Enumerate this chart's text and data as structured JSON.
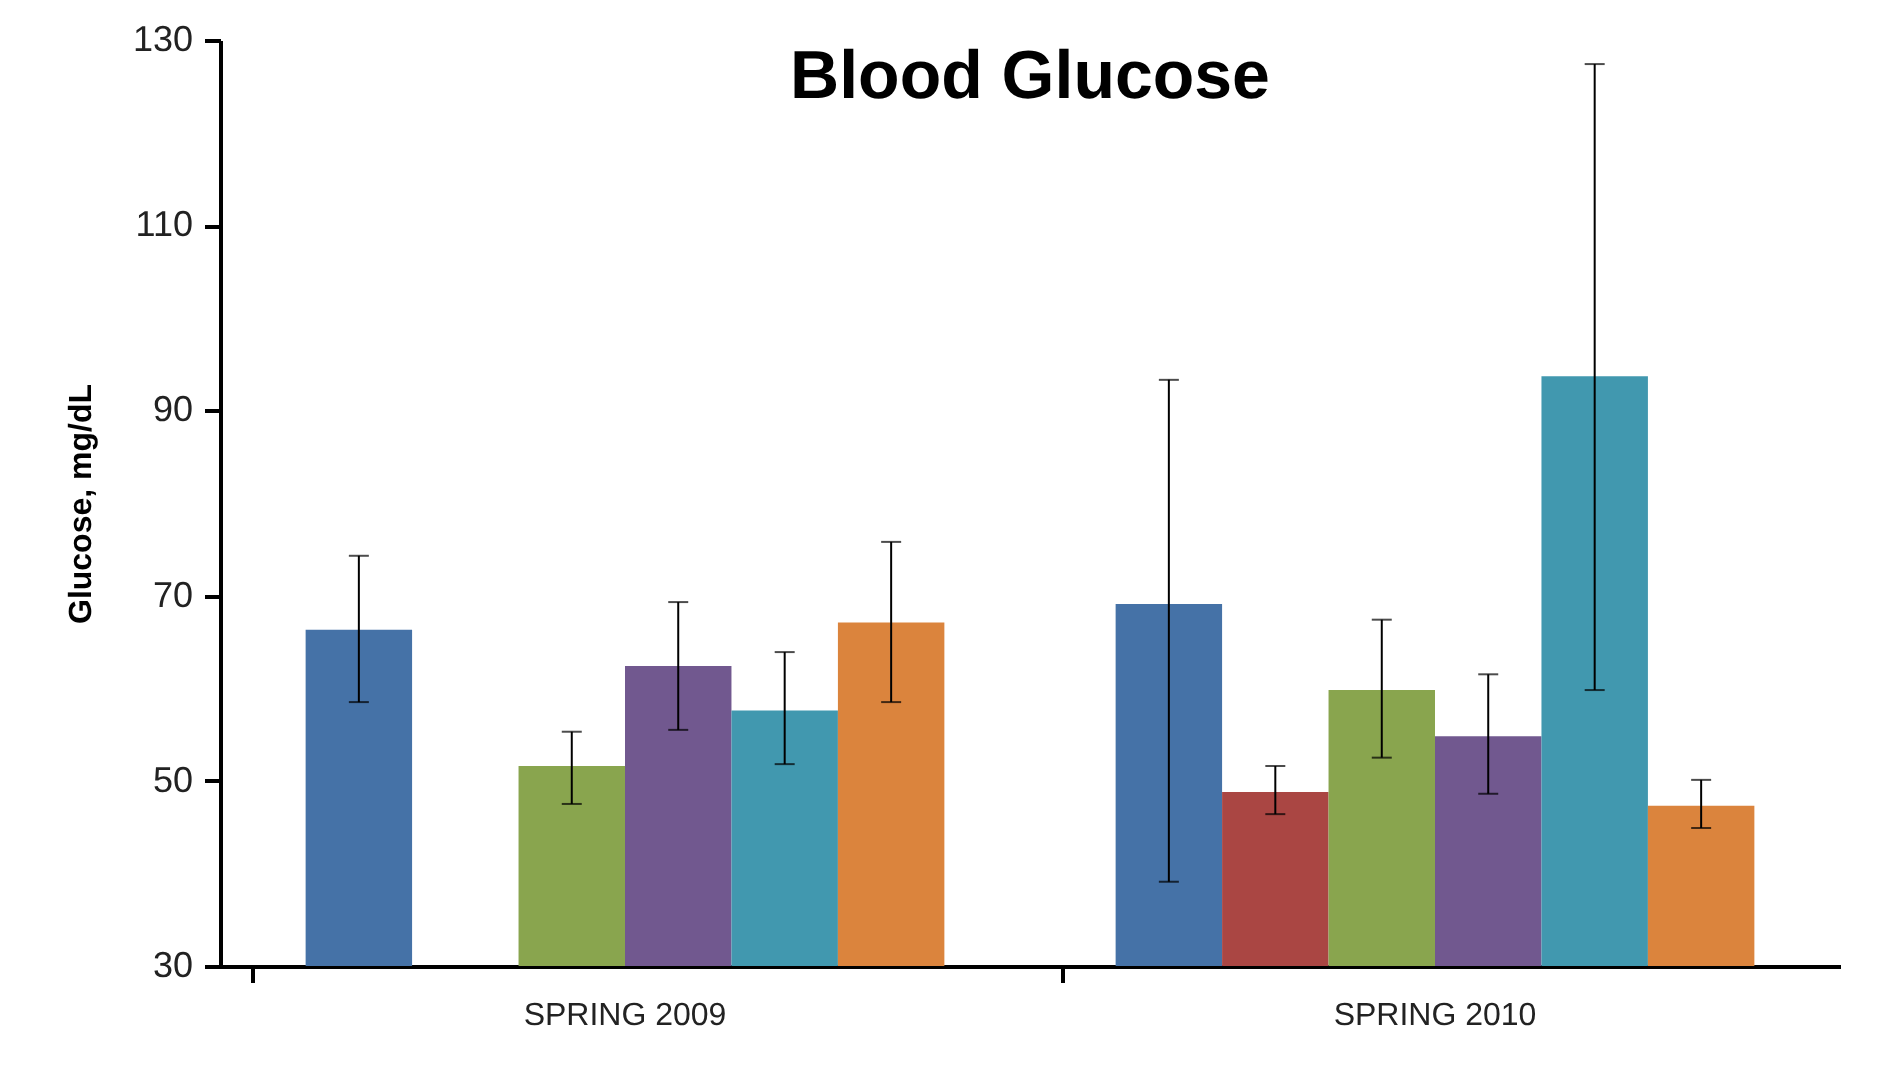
{
  "chart_data": {
    "type": "bar",
    "title": "Blood Glucose",
    "ylabel": "Glucose, mg/dL",
    "categories": [
      "SPRING 2009",
      "SPRING 2010"
    ],
    "series": [
      {
        "color": "#4572a7",
        "values": [
          66.3,
          69.1
        ],
        "errors": [
          [
            58.5,
            74.3
          ],
          [
            39.1,
            93.3
          ]
        ]
      },
      {
        "color": "#aa4643",
        "values": [
          null,
          48.8
        ],
        "errors": [
          null,
          [
            46.4,
            51.6
          ]
        ]
      },
      {
        "color": "#89a54e",
        "values": [
          51.6,
          59.8
        ],
        "errors": [
          [
            47.5,
            55.3
          ],
          [
            52.5,
            67.4
          ]
        ]
      },
      {
        "color": "#71588f",
        "values": [
          62.4,
          54.8
        ],
        "errors": [
          [
            55.5,
            69.3
          ],
          [
            48.6,
            61.5
          ]
        ]
      },
      {
        "color": "#4198af",
        "values": [
          57.6,
          93.7
        ],
        "errors": [
          [
            51.8,
            63.9
          ],
          [
            59.8,
            127.4
          ]
        ]
      },
      {
        "color": "#db843d",
        "values": [
          67.1,
          47.3
        ],
        "errors": [
          [
            58.5,
            75.8
          ],
          [
            44.9,
            50.1
          ]
        ]
      }
    ],
    "ylim": [
      30,
      130
    ],
    "yticks": [
      30,
      50,
      70,
      90,
      110,
      130
    ],
    "grid": false,
    "legend": false
  }
}
